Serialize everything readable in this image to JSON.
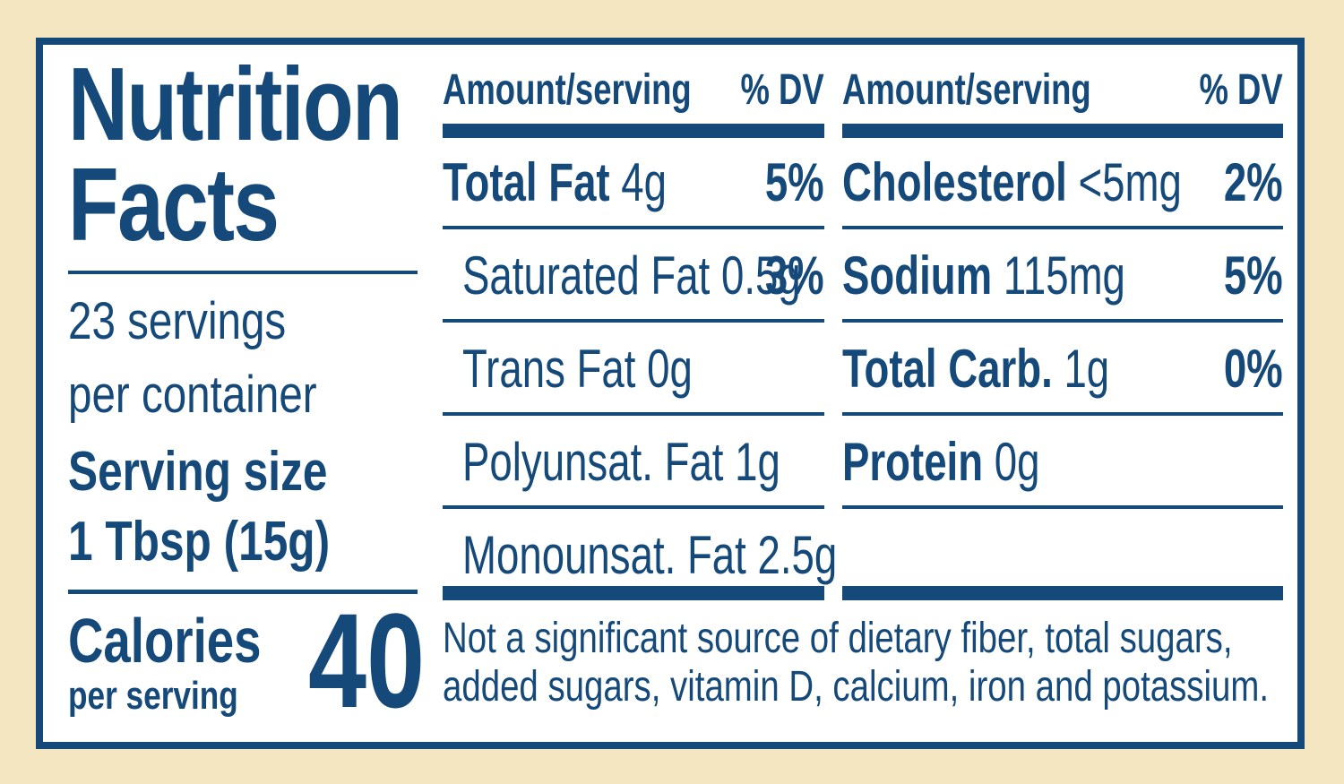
{
  "title": {
    "line1": "Nutrition",
    "line2": "Facts"
  },
  "servings": {
    "line1": "23 servings",
    "line2": "per container"
  },
  "serving_size": {
    "label": "Serving size",
    "value": "1 Tbsp (15g)"
  },
  "calories": {
    "label": "Calories",
    "sub": "per serving",
    "value": "40"
  },
  "header": {
    "amount": "Amount/serving",
    "dv": "% DV"
  },
  "left_rows": [
    {
      "name": "Total Fat",
      "amount": "4g",
      "dv": "5%",
      "bold": true,
      "indent": false
    },
    {
      "name": "Saturated Fat",
      "amount": "0.5g",
      "dv": "3%",
      "bold": false,
      "indent": true
    },
    {
      "name": "Trans Fat",
      "amount": "0g",
      "dv": "",
      "bold": false,
      "indent": true
    },
    {
      "name": "Polyunsat. Fat",
      "amount": "1g",
      "dv": "",
      "bold": false,
      "indent": true
    },
    {
      "name": "Monounsat. Fat",
      "amount": "2.5g",
      "dv": "",
      "bold": false,
      "indent": true
    }
  ],
  "right_rows": [
    {
      "name": "Cholesterol",
      "amount": "<5mg",
      "dv": "2%",
      "bold": true,
      "indent": false
    },
    {
      "name": "Sodium",
      "amount": "115mg",
      "dv": "5%",
      "bold": true,
      "indent": false
    },
    {
      "name": "Total Carb.",
      "amount": "1g",
      "dv": "0%",
      "bold": true,
      "indent": false
    },
    {
      "name": "Protein",
      "amount": "0g",
      "dv": "",
      "bold": true,
      "indent": false
    }
  ],
  "footnote": {
    "line1": "Not a significant source of dietary fiber, total sugars,",
    "line2": "added sugars, vitamin D, calcium, iron and potassium."
  },
  "colors": {
    "ink": "#14497a",
    "background": "#f4e6c1",
    "panel": "#ffffff"
  }
}
